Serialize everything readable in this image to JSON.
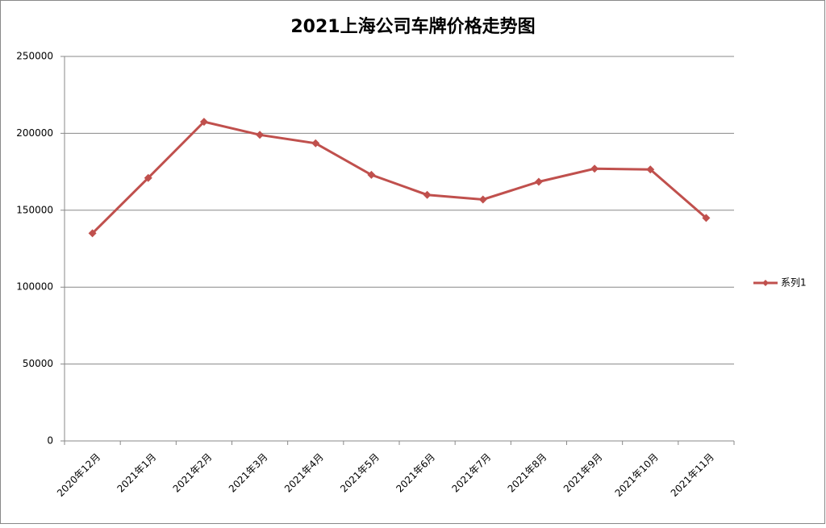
{
  "chart_data": {
    "type": "line",
    "title": "2021上海公司车牌价格走势图",
    "categories": [
      "2020年12月",
      "2021年1月",
      "2021年2月",
      "2021年3月",
      "2021年4月",
      "2021年5月",
      "2021年6月",
      "2021年7月",
      "2021年8月",
      "2021年9月",
      "2021年10月",
      "2021年11月"
    ],
    "series": [
      {
        "name": "系列1",
        "color": "#c0504d",
        "values": [
          135000,
          171000,
          207500,
          199000,
          193500,
          173000,
          160000,
          157000,
          168500,
          177000,
          176500,
          145000
        ]
      }
    ],
    "ylim": [
      0,
      250000
    ],
    "yticks": [
      0,
      50000,
      100000,
      150000,
      200000,
      250000
    ],
    "grid": true,
    "legend": "right"
  }
}
